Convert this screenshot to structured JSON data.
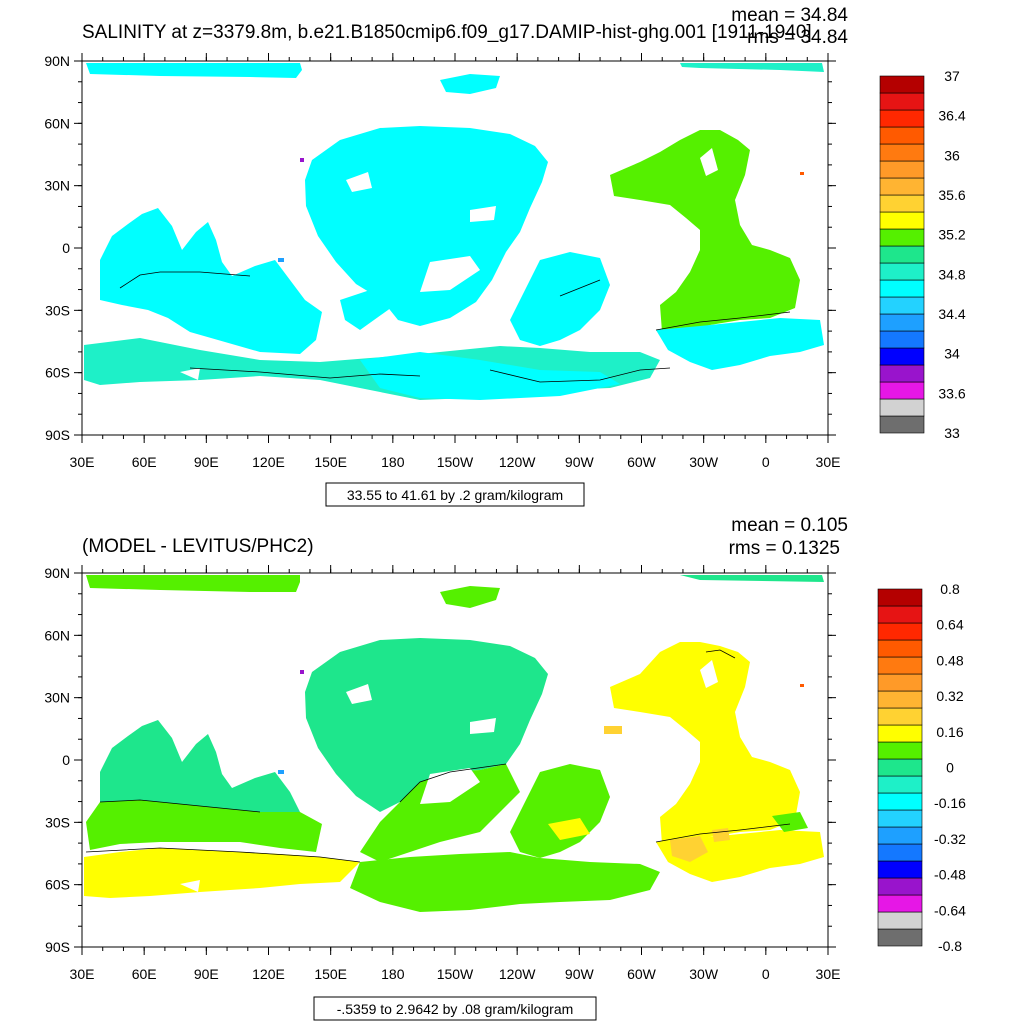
{
  "panels": [
    {
      "title": "SALINITY at z=3379.8m, b.e21.B1850cmip6.f09_g17.DAMIP-hist-ghg.001 [1911-1940]",
      "stats": [
        "mean = 34.84",
        "rms = 34.84"
      ],
      "range_text": "33.55 to 41.61 by .2 gram/kilogram",
      "lat_ticks": [
        "90N",
        "60N",
        "30N",
        "0",
        "30S",
        "60S",
        "90S"
      ],
      "lon_ticks": [
        "30E",
        "60E",
        "90E",
        "120E",
        "150E",
        "180",
        "150W",
        "120W",
        "90W",
        "60W",
        "30W",
        "0",
        "30E"
      ],
      "colorbar": {
        "colors": [
          "#6e6e6e",
          "#d2d2d2",
          "#e617e6",
          "#9914cc",
          "#0000ff",
          "#1478ff",
          "#1ea0ff",
          "#23d2ff",
          "#00ffff",
          "#1ef0c8",
          "#1ee68c",
          "#55f000",
          "#ffff00",
          "#ffd232",
          "#ffb432",
          "#ff9a28",
          "#ff7a10",
          "#ff5a00",
          "#ff2800",
          "#e61414",
          "#b40000"
        ],
        "labels": [
          "33",
          "33.6",
          "34",
          "34.4",
          "34.8",
          "35.2",
          "35.6",
          "36",
          "36.4",
          "37"
        ]
      }
    },
    {
      "title": "(MODEL - LEVITUS/PHC2)",
      "stats": [
        "mean = 0.105",
        "rms = 0.1325"
      ],
      "range_text": "-.5359 to 2.9642 by .08 gram/kilogram",
      "lat_ticks": [
        "90N",
        "60N",
        "30N",
        "0",
        "30S",
        "60S",
        "90S"
      ],
      "lon_ticks": [
        "30E",
        "60E",
        "90E",
        "120E",
        "150E",
        "180",
        "150W",
        "120W",
        "90W",
        "60W",
        "30W",
        "0",
        "30E"
      ],
      "colorbar": {
        "colors": [
          "#6e6e6e",
          "#d2d2d2",
          "#e617e6",
          "#9914cc",
          "#0000ff",
          "#1478ff",
          "#1ea0ff",
          "#23d2ff",
          "#00ffff",
          "#1ef0c8",
          "#1ee68c",
          "#55f000",
          "#ffff00",
          "#ffd232",
          "#ffb432",
          "#ff9a28",
          "#ff7a10",
          "#ff5a00",
          "#ff2800",
          "#e61414",
          "#b40000"
        ],
        "labels": [
          "-0.8",
          "-0.64",
          "-0.48",
          "-0.32",
          "-0.16",
          "0",
          "0.16",
          "0.32",
          "0.48",
          "0.64",
          "0.8"
        ]
      }
    }
  ]
}
